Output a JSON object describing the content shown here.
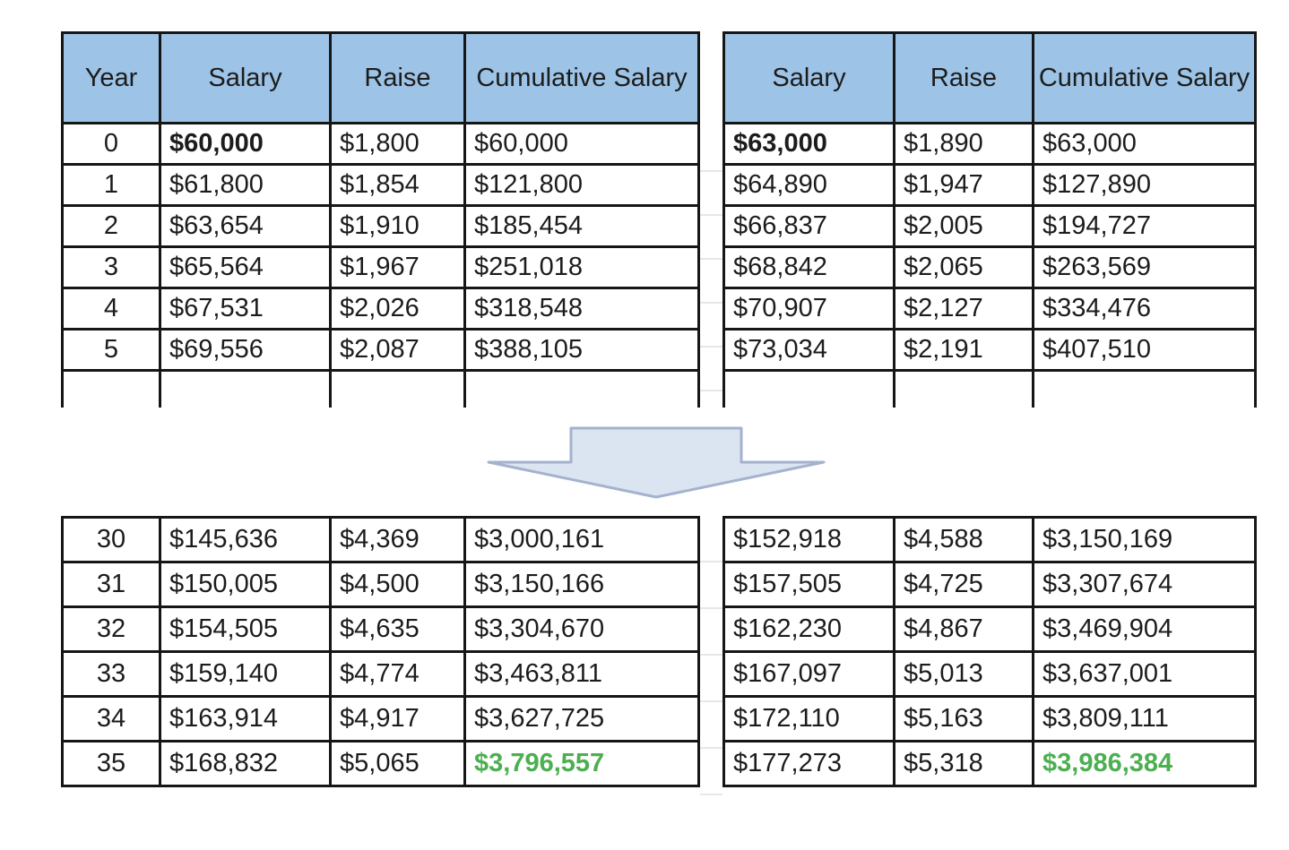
{
  "chart_data": {
    "type": "table",
    "headers": {
      "year": "Year",
      "salary": "Salary",
      "raise": "Raise",
      "cumulative": "Cumulative Salary"
    },
    "tables": {
      "top_left": {
        "rows": [
          [
            "0",
            "$60,000",
            "$1,800",
            "$60,000"
          ],
          [
            "1",
            "$61,800",
            "$1,854",
            "$121,800"
          ],
          [
            "2",
            "$63,654",
            "$1,910",
            "$185,454"
          ],
          [
            "3",
            "$65,564",
            "$1,967",
            "$251,018"
          ],
          [
            "4",
            "$67,531",
            "$2,026",
            "$318,548"
          ],
          [
            "5",
            "$69,556",
            "$2,087",
            "$388,105"
          ]
        ]
      },
      "top_right": {
        "rows": [
          [
            "$63,000",
            "$1,890",
            "$63,000"
          ],
          [
            "$64,890",
            "$1,947",
            "$127,890"
          ],
          [
            "$66,837",
            "$2,005",
            "$194,727"
          ],
          [
            "$68,842",
            "$2,065",
            "$263,569"
          ],
          [
            "$70,907",
            "$2,127",
            "$334,476"
          ],
          [
            "$73,034",
            "$2,191",
            "$407,510"
          ]
        ]
      },
      "bottom_left": {
        "rows": [
          [
            "30",
            "$145,636",
            "$4,369",
            "$3,000,161"
          ],
          [
            "31",
            "$150,005",
            "$4,500",
            "$3,150,166"
          ],
          [
            "32",
            "$154,505",
            "$4,635",
            "$3,304,670"
          ],
          [
            "33",
            "$159,140",
            "$4,774",
            "$3,463,811"
          ],
          [
            "34",
            "$163,914",
            "$4,917",
            "$3,627,725"
          ],
          [
            "35",
            "$168,832",
            "$5,065",
            "$3,796,557"
          ]
        ]
      },
      "bottom_right": {
        "rows": [
          [
            "$152,918",
            "$4,588",
            "$3,150,169"
          ],
          [
            "$157,505",
            "$4,725",
            "$3,307,674"
          ],
          [
            "$162,230",
            "$4,867",
            "$3,469,904"
          ],
          [
            "$167,097",
            "$5,013",
            "$3,637,001"
          ],
          [
            "$172,110",
            "$5,163",
            "$3,809,111"
          ],
          [
            "$177,273",
            "$5,318",
            "$3,986,384"
          ]
        ]
      }
    }
  },
  "colors": {
    "header_bg": "#9DC3E6",
    "highlight_green": "#4CAF50",
    "table_border": "#161616",
    "gap_gridline": "#E7E7E7",
    "arrow_fill": "#DBE5F1",
    "arrow_stroke": "#A3B3CE"
  }
}
